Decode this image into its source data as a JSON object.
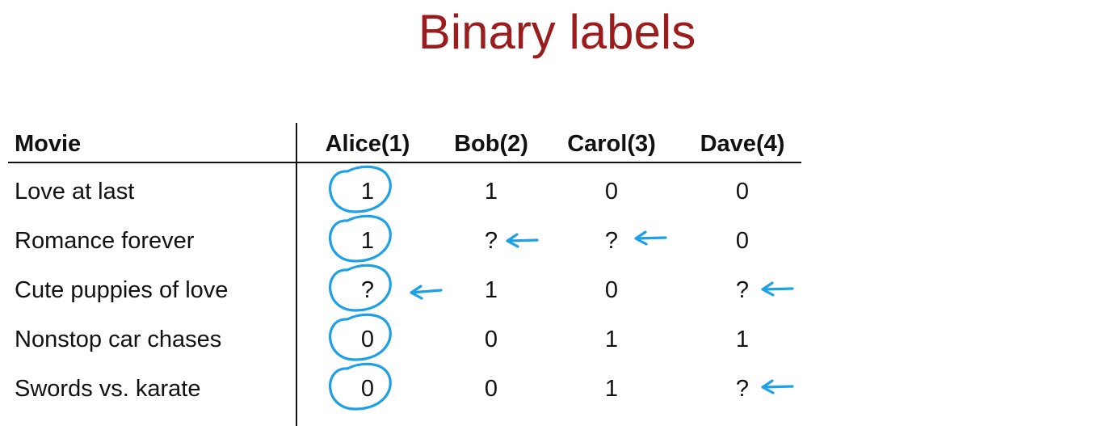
{
  "title": "Binary labels",
  "table": {
    "headers": [
      "Movie",
      "Alice(1)",
      "Bob(2)",
      "Carol(3)",
      "Dave(4)"
    ],
    "rows": [
      {
        "movie": "Love at last",
        "ratings": [
          "1",
          "1",
          "0",
          "0"
        ]
      },
      {
        "movie": "Romance forever",
        "ratings": [
          "1",
          "?",
          "?",
          "0"
        ]
      },
      {
        "movie": "Cute puppies of love",
        "ratings": [
          "?",
          "1",
          "0",
          "?"
        ]
      },
      {
        "movie": "Nonstop car chases",
        "ratings": [
          "0",
          "0",
          "1",
          "1"
        ]
      },
      {
        "movie": "Swords vs. karate",
        "ratings": [
          "0",
          "0",
          "1",
          "?"
        ]
      }
    ]
  },
  "annotations": {
    "ink_color": "#1ea0e6",
    "circled_column": "Alice(1)",
    "arrows_point_to": "?"
  }
}
